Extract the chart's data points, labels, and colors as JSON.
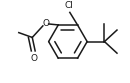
{
  "bg_color": "#ffffff",
  "line_color": "#1a1a1a",
  "line_width": 1.1,
  "cl_label": "Cl",
  "o_label": "O",
  "o2_label": "O",
  "figsize": [
    1.3,
    0.83
  ],
  "dpi": 100
}
